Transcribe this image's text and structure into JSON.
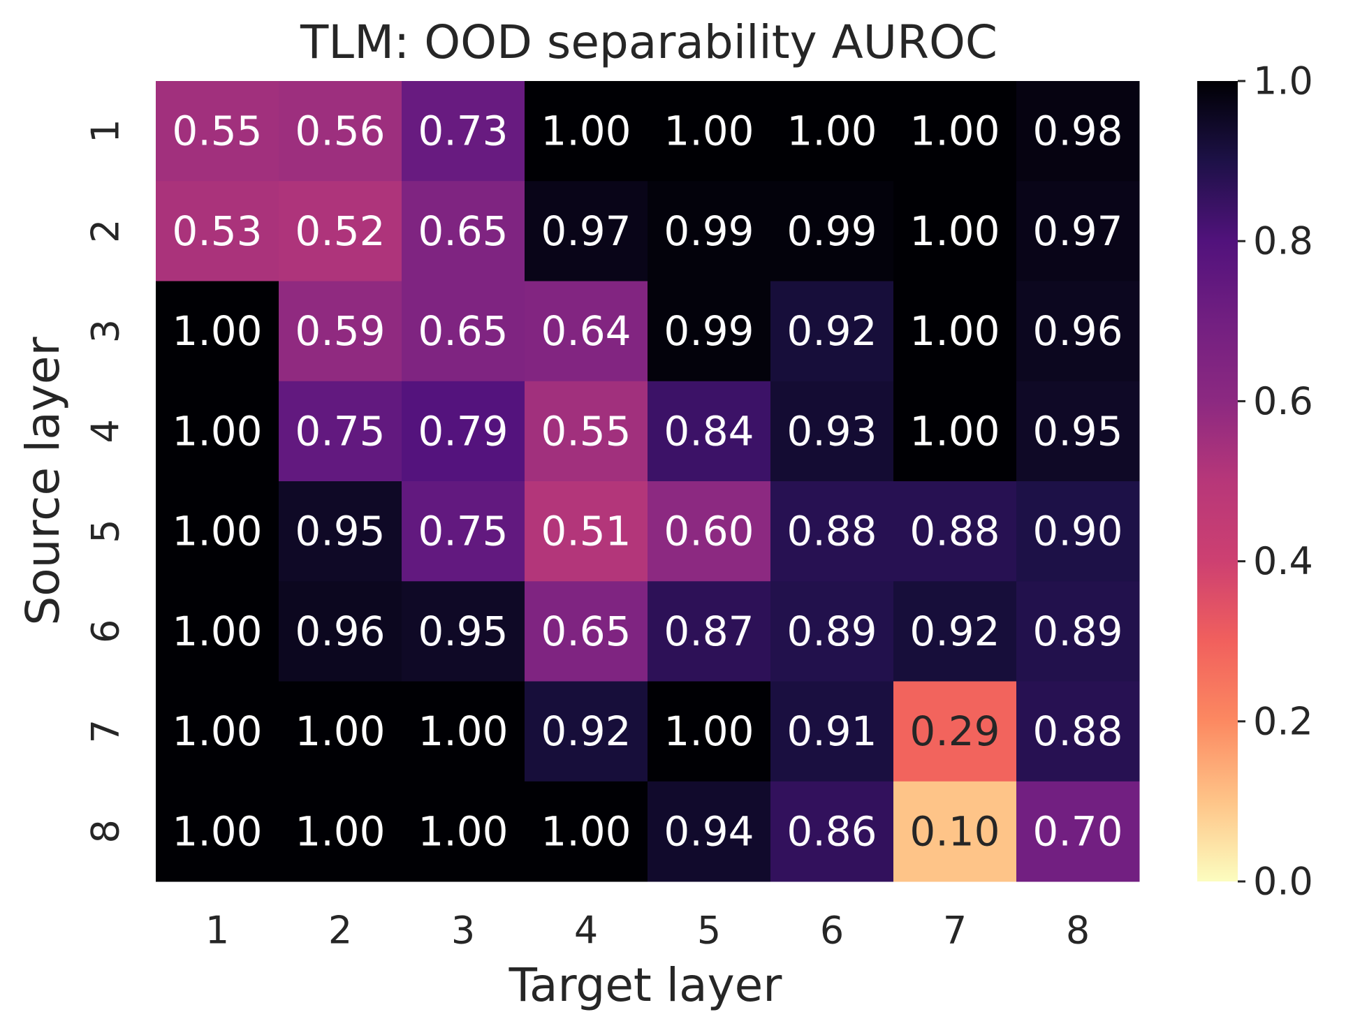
{
  "chart_data": {
    "type": "heatmap",
    "title": "TLM: OOD separability AUROC",
    "xlabel": "Target layer",
    "ylabel": "Source layer",
    "x_categories": [
      "1",
      "2",
      "3",
      "4",
      "5",
      "6",
      "7",
      "8"
    ],
    "y_categories": [
      "1",
      "2",
      "3",
      "4",
      "5",
      "6",
      "7",
      "8"
    ],
    "values": [
      [
        0.55,
        0.56,
        0.73,
        1.0,
        1.0,
        1.0,
        1.0,
        0.98
      ],
      [
        0.53,
        0.52,
        0.65,
        0.97,
        0.99,
        0.99,
        1.0,
        0.97
      ],
      [
        1.0,
        0.59,
        0.65,
        0.64,
        0.99,
        0.92,
        1.0,
        0.96
      ],
      [
        1.0,
        0.75,
        0.79,
        0.55,
        0.84,
        0.93,
        1.0,
        0.95
      ],
      [
        1.0,
        0.95,
        0.75,
        0.51,
        0.6,
        0.88,
        0.88,
        0.9
      ],
      [
        1.0,
        0.96,
        0.95,
        0.65,
        0.87,
        0.89,
        0.92,
        0.89
      ],
      [
        1.0,
        1.0,
        1.0,
        0.92,
        1.0,
        0.91,
        0.29,
        0.88
      ],
      [
        1.0,
        1.0,
        1.0,
        1.0,
        0.94,
        0.86,
        0.1,
        0.7
      ]
    ],
    "colorbar": {
      "range": [
        0.0,
        1.0
      ],
      "ticks": [
        "0.0",
        "0.2",
        "0.4",
        "0.6",
        "0.8",
        "1.0"
      ],
      "colormap": "magma_r"
    },
    "annotation_format": "2 decimals"
  }
}
